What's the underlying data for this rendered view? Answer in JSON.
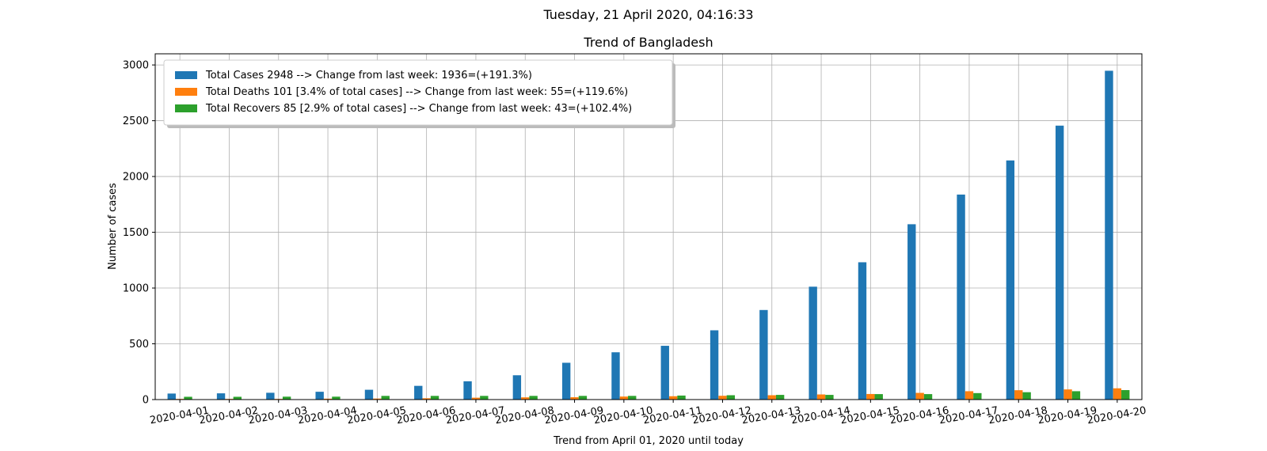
{
  "suptitle": "Tuesday, 21 April 2020, 04:16:33",
  "chart_data": {
    "type": "bar",
    "title": "Trend of Bangladesh",
    "xlabel": "Trend from April 01, 2020 until today",
    "ylabel": "Number of cases",
    "ylim": [
      0,
      3100
    ],
    "yticks": [
      0,
      500,
      1000,
      1500,
      2000,
      2500,
      3000
    ],
    "grid": true,
    "legend_position": "upper-left",
    "categories": [
      "2020-04-01",
      "2020-04-02",
      "2020-04-03",
      "2020-04-04",
      "2020-04-05",
      "2020-04-06",
      "2020-04-07",
      "2020-04-08",
      "2020-04-09",
      "2020-04-10",
      "2020-04-11",
      "2020-04-12",
      "2020-04-13",
      "2020-04-14",
      "2020-04-15",
      "2020-04-16",
      "2020-04-17",
      "2020-04-18",
      "2020-04-19",
      "2020-04-20"
    ],
    "series": [
      {
        "name": "Total Cases 2948 --> Change from last week: 1936=(+191.3%)",
        "color": "#1f77b4",
        "values": [
          54,
          56,
          61,
          70,
          88,
          123,
          164,
          218,
          330,
          424,
          482,
          621,
          803,
          1012,
          1231,
          1572,
          1838,
          2144,
          2456,
          2948
        ]
      },
      {
        "name": "Total Deaths 101 [3.4% of total cases] --> Change from last week: 55=(+119.6%)",
        "color": "#ff7f0e",
        "values": [
          6,
          6,
          6,
          8,
          9,
          12,
          17,
          20,
          21,
          27,
          30,
          34,
          39,
          46,
          50,
          60,
          75,
          84,
          91,
          101
        ]
      },
      {
        "name": "Total Recovers 85 [2.9% of total cases] --> Change from last week: 43=(+102.4%)",
        "color": "#2ca02c",
        "values": [
          25,
          25,
          26,
          26,
          33,
          33,
          33,
          33,
          33,
          33,
          36,
          39,
          42,
          42,
          49,
          49,
          58,
          66,
          75,
          85
        ]
      }
    ]
  }
}
